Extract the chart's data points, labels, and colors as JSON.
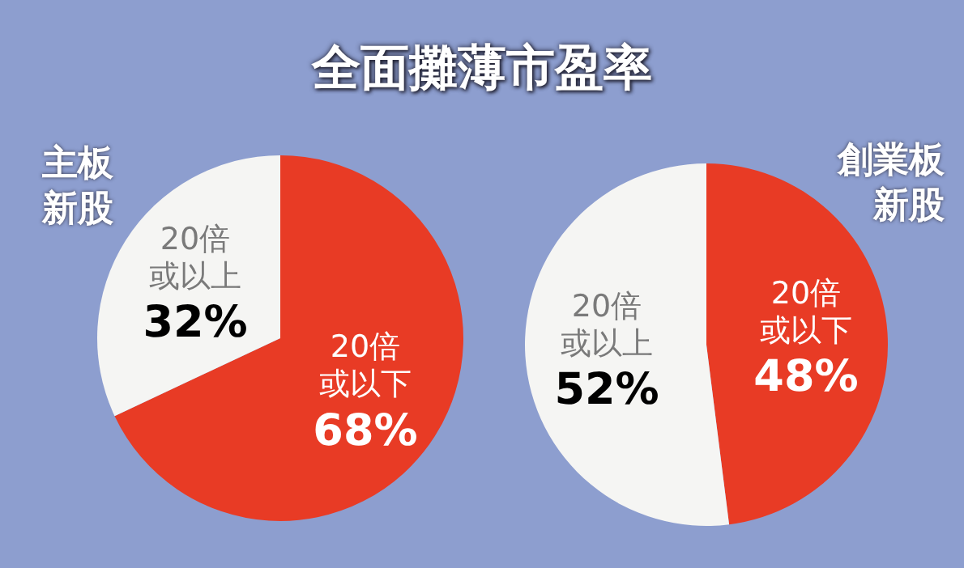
{
  "chart_data": [
    {
      "type": "pie",
      "title": "全面攤薄市盈率",
      "subtitle": "主板新股",
      "categories": [
        "20倍或以下",
        "20倍或以上"
      ],
      "values": [
        68,
        32
      ],
      "value_labels": [
        "68%",
        "32%"
      ],
      "colors": [
        "#e83b25",
        "#f5f5f3"
      ],
      "data_labels": true,
      "legend": false
    },
    {
      "type": "pie",
      "subtitle": "創業板新股",
      "categories": [
        "20倍或以下",
        "20倍或以上"
      ],
      "values": [
        48,
        52
      ],
      "value_labels": [
        "48%",
        "52%"
      ],
      "colors": [
        "#e83b25",
        "#f5f5f3"
      ],
      "data_labels": true,
      "legend": false
    }
  ]
}
